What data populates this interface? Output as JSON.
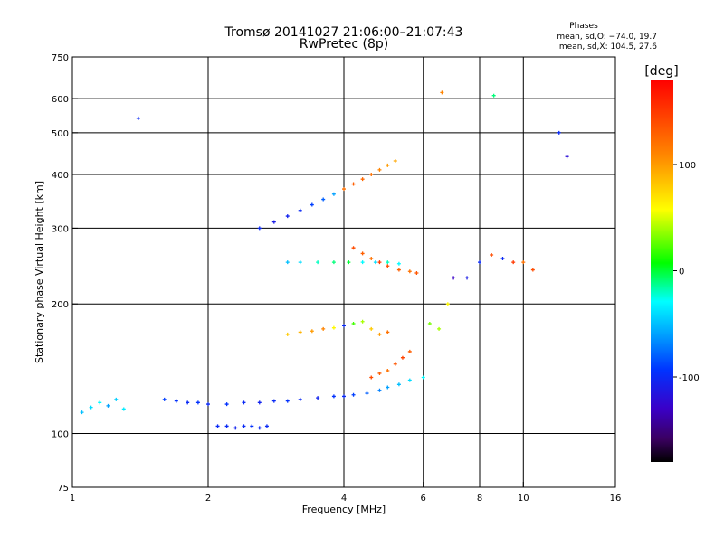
{
  "header": {
    "title_line1": "Tromsø 20141027 21:06:00–21:07:43",
    "title_line2": "RwPretec (8p)",
    "phase_title": "Phases",
    "phase_line1": "mean, sd,O: −74.0, 19.7",
    "phase_line2": "mean, sd,X: 104.5, 27.6"
  },
  "colorbar": {
    "label": "[deg]",
    "ticks": [
      {
        "value": 100,
        "text": "100"
      },
      {
        "value": 0,
        "text": "0"
      },
      {
        "value": -100,
        "text": "-100"
      }
    ],
    "range": [
      -180,
      180
    ],
    "colormap": "rainbow"
  },
  "chart_data": {
    "type": "scatter",
    "title": "Tromsø 20141027 21:06:00–21:07:43",
    "subtitle": "RwPretec (8p)",
    "xlabel": "Frequency [MHz]",
    "ylabel": "Stationary phase Virtual Height [km]",
    "x_scale": "log",
    "y_scale": "log",
    "xlim": [
      1,
      16
    ],
    "ylim": [
      75,
      750
    ],
    "x_ticks": [
      {
        "value": 1,
        "text": "1"
      },
      {
        "value": 2,
        "text": "2"
      },
      {
        "value": 4,
        "text": "4"
      },
      {
        "value": 6,
        "text": "6"
      },
      {
        "value": 8,
        "text": "8"
      },
      {
        "value": 10,
        "text": "10"
      },
      {
        "value": 16,
        "text": "16"
      }
    ],
    "y_ticks": [
      {
        "value": 75,
        "text": "75"
      },
      {
        "value": 100,
        "text": "100"
      },
      {
        "value": 200,
        "text": "200"
      },
      {
        "value": 300,
        "text": "300"
      },
      {
        "value": 400,
        "text": "400"
      },
      {
        "value": 500,
        "text": "500"
      },
      {
        "value": 600,
        "text": "600"
      },
      {
        "value": 750,
        "text": "750"
      }
    ],
    "x_gridlines": [
      2,
      4,
      6,
      8,
      10
    ],
    "y_gridlines": [
      100,
      200,
      300,
      400,
      500,
      600
    ],
    "grid": true,
    "marker": "plus",
    "color_by": "phase [deg]",
    "color_range": [
      -180,
      180
    ],
    "series": [
      {
        "x": [
          1.05,
          1.1,
          1.15,
          1.2,
          1.25,
          1.3
        ],
        "y": [
          112,
          115,
          118,
          116,
          120,
          114
        ],
        "phase": [
          -50,
          -40,
          -30,
          -60,
          -45,
          -35
        ]
      },
      {
        "x": [
          1.6,
          1.7,
          1.8,
          1.9,
          2.0,
          2.2,
          2.4,
          2.6,
          2.8,
          3.0,
          3.2,
          3.5,
          3.8,
          4.0,
          4.2,
          4.5,
          4.8,
          5.0,
          5.3,
          5.6,
          6.0
        ],
        "y": [
          120,
          119,
          118,
          118,
          117,
          117,
          118,
          118,
          119,
          119,
          120,
          121,
          122,
          122,
          123,
          124,
          126,
          128,
          130,
          133,
          135
        ],
        "phase": [
          -90,
          -95,
          -100,
          -95,
          -100,
          -95,
          -100,
          -105,
          -100,
          -95,
          -100,
          -105,
          -95,
          -100,
          -90,
          -80,
          -70,
          -60,
          -50,
          -40,
          -30
        ]
      },
      {
        "x": [
          2.1,
          2.2,
          2.3,
          2.4,
          2.5,
          2.6,
          2.7
        ],
        "y": [
          104,
          104,
          103,
          104,
          104,
          103,
          104
        ],
        "phase": [
          -100,
          -100,
          -105,
          -100,
          -95,
          -100,
          -100
        ]
      },
      {
        "x": [
          2.6,
          2.8,
          3.0,
          3.2,
          3.4,
          3.6,
          3.8,
          4.0,
          4.2,
          4.4,
          4.6,
          4.8,
          5.0,
          5.2
        ],
        "y": [
          300,
          310,
          320,
          330,
          340,
          350,
          360,
          370,
          380,
          390,
          400,
          410,
          420,
          430
        ],
        "phase": [
          -100,
          -110,
          -105,
          -100,
          -90,
          -80,
          -60,
          120,
          130,
          125,
          120,
          110,
          100,
          95
        ]
      },
      {
        "x": [
          3.0,
          3.2,
          3.5,
          3.8,
          4.1,
          4.4,
          4.7,
          5.0,
          5.3
        ],
        "y": [
          250,
          250,
          250,
          250,
          250,
          250,
          250,
          250,
          248
        ],
        "phase": [
          -50,
          -40,
          -20,
          -10,
          0,
          -30,
          -40,
          -20,
          -30
        ]
      },
      {
        "x": [
          4.2,
          4.4,
          4.6,
          4.8,
          5.0,
          5.3,
          5.6,
          5.8
        ],
        "y": [
          270,
          262,
          255,
          250,
          245,
          240,
          238,
          236
        ],
        "phase": [
          140,
          130,
          120,
          150,
          140,
          130,
          120,
          135
        ]
      },
      {
        "x": [
          3.0,
          3.2,
          3.4,
          3.6,
          3.8,
          4.0,
          4.2,
          4.4,
          4.6,
          4.8,
          5.0
        ],
        "y": [
          170,
          172,
          173,
          175,
          176,
          178,
          180,
          182,
          175,
          170,
          172
        ],
        "phase": [
          80,
          90,
          100,
          110,
          60,
          -100,
          20,
          40,
          80,
          100,
          120
        ]
      },
      {
        "x": [
          4.6,
          4.8,
          5.0,
          5.2,
          5.4,
          5.6
        ],
        "y": [
          135,
          138,
          140,
          145,
          150,
          155
        ],
        "phase": [
          140,
          130,
          120,
          135,
          145,
          130
        ]
      },
      {
        "x": [
          6.2,
          6.5,
          6.8,
          7.0,
          7.5,
          8.0,
          8.5,
          9.0,
          9.5,
          10.0,
          10.5
        ],
        "y": [
          180,
          175,
          200,
          230,
          230,
          250,
          260,
          255,
          250,
          250,
          240
        ],
        "phase": [
          30,
          40,
          60,
          -130,
          -110,
          -100,
          140,
          -100,
          150,
          120,
          140
        ]
      },
      {
        "x": [
          1.4,
          6.6,
          8.6,
          12.0,
          12.5
        ],
        "y": [
          540,
          620,
          610,
          500,
          440
        ],
        "phase": [
          -100,
          110,
          -10,
          -100,
          -120
        ]
      }
    ]
  }
}
